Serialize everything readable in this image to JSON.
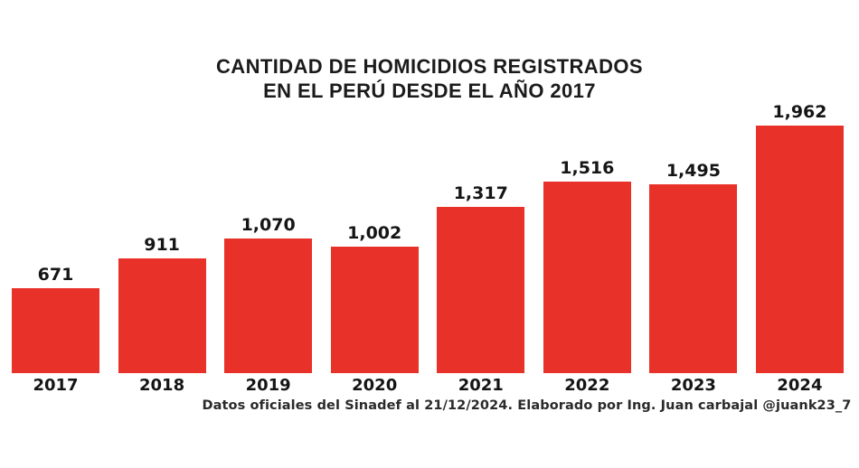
{
  "title": {
    "line1": "CANTIDAD DE HOMICIDIOS REGISTRADOS",
    "line2": "EN EL PERÚ DESDE EL AÑO 2017"
  },
  "footer": {
    "text": "Datos oficiales del Sinadef al 21/12/2024. Elaborado por Ing. Juan carbajal @juank23_7"
  },
  "colors": {
    "bar": "#e83128",
    "text": "#1b1b1b",
    "background": "#ffffff"
  },
  "chart_data": {
    "type": "bar",
    "title": "CANTIDAD DE HOMICIDIOS REGISTRADOS EN EL PERÚ DESDE EL AÑO 2017",
    "categories": [
      "2017",
      "2018",
      "2019",
      "2020",
      "2021",
      "2022",
      "2023",
      "2024"
    ],
    "values": [
      671,
      911,
      1070,
      1002,
      1317,
      1516,
      1495,
      1962
    ],
    "value_labels": [
      "671",
      "911",
      "1,070",
      "1,002",
      "1,317",
      "1,516",
      "1,495",
      "1,962"
    ],
    "xlabel": "",
    "ylabel": "",
    "ylim": [
      0,
      1962
    ],
    "grid": false,
    "legend": null,
    "bar_color": "#e83128",
    "annotation": "Datos oficiales del Sinadef al 21/12/2024. Elaborado por Ing. Juan carbajal @juank23_7"
  }
}
